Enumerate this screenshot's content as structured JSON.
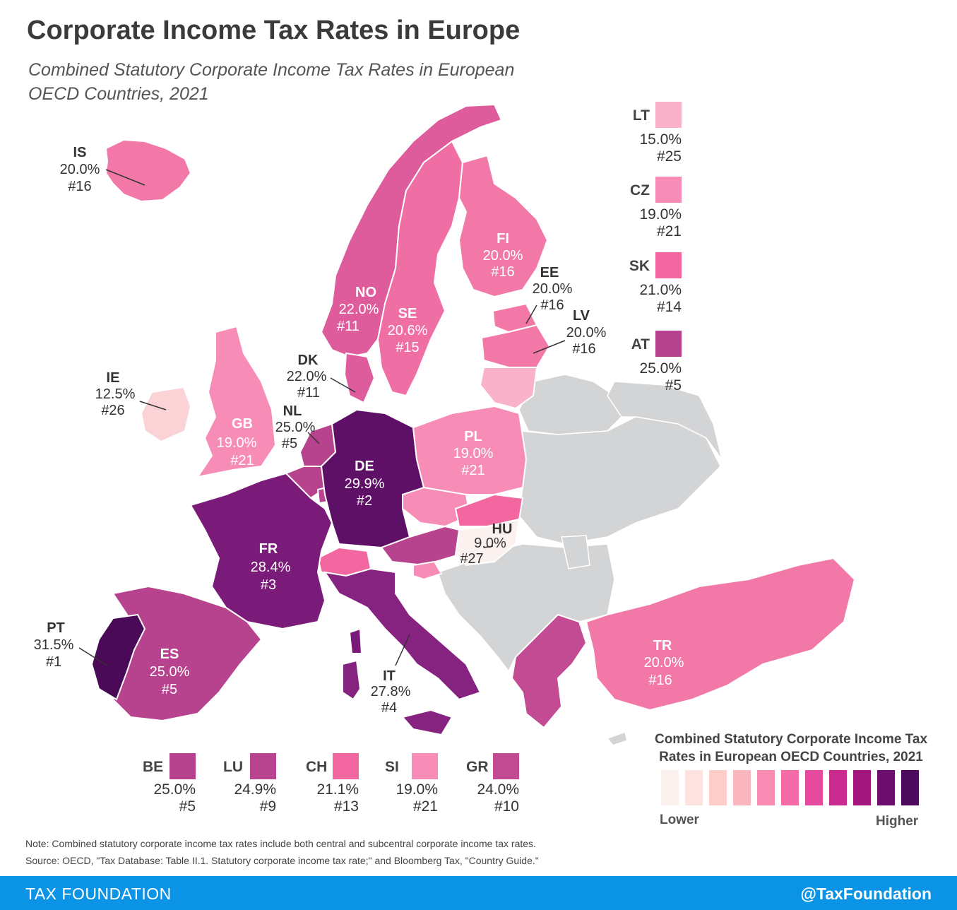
{
  "title": "Corporate Income Tax Rates in Europe",
  "subtitle": "Combined Statutory Corporate Income Tax Rates in European OECD Countries, 2021",
  "colors": {
    "non_oecd": "#d3d4d6",
    "border": "#ffffff",
    "scale": [
      "#fbf2f0",
      "#fde3df",
      "#fccdc9",
      "#fab6bf",
      "#f88bb2",
      "#f66aa8",
      "#e54a9f",
      "#c82a8e",
      "#a1157d",
      "#6c0e6e",
      "#4c0a5c"
    ]
  },
  "countries": [
    {
      "code": "IS",
      "rate": "20.0%",
      "rank": "#16",
      "fill": "#f279a7"
    },
    {
      "code": "FI",
      "rate": "20.0%",
      "rank": "#16",
      "fill": "#f279a7"
    },
    {
      "code": "EE",
      "rate": "20.0%",
      "rank": "#16",
      "fill": "#f279a7"
    },
    {
      "code": "LV",
      "rate": "20.0%",
      "rank": "#16",
      "fill": "#f279a7"
    },
    {
      "code": "NO",
      "rate": "22.0%",
      "rank": "#11",
      "fill": "#df5c9c"
    },
    {
      "code": "SE",
      "rate": "20.6%",
      "rank": "#15",
      "fill": "#ef6fa5"
    },
    {
      "code": "DK",
      "rate": "22.0%",
      "rank": "#11",
      "fill": "#df5c9c"
    },
    {
      "code": "IE",
      "rate": "12.5%",
      "rank": "#26",
      "fill": "#fbd3d6"
    },
    {
      "code": "GB",
      "rate": "19.0%",
      "rank": "#21",
      "fill": "#f78db7"
    },
    {
      "code": "NL",
      "rate": "25.0%",
      "rank": "#5",
      "fill": "#b7428e"
    },
    {
      "code": "DE",
      "rate": "29.9%",
      "rank": "#2",
      "fill": "#5e0f66"
    },
    {
      "code": "PL",
      "rate": "19.0%",
      "rank": "#21",
      "fill": "#f78db7"
    },
    {
      "code": "HU",
      "rate": "9.0%",
      "rank": "#27",
      "fill": "#fbf1ee"
    },
    {
      "code": "FR",
      "rate": "28.4%",
      "rank": "#3",
      "fill": "#7b1b79"
    },
    {
      "code": "PT",
      "rate": "31.5%",
      "rank": "#1",
      "fill": "#4a0a58"
    },
    {
      "code": "ES",
      "rate": "25.0%",
      "rank": "#5",
      "fill": "#b7428e"
    },
    {
      "code": "IT",
      "rate": "27.8%",
      "rank": "#4",
      "fill": "#862380"
    },
    {
      "code": "TR",
      "rate": "20.0%",
      "rank": "#16",
      "fill": "#f279a7"
    }
  ],
  "side_legend": [
    {
      "code": "LT",
      "rate": "15.0%",
      "rank": "#25",
      "fill": "#f9b2c9"
    },
    {
      "code": "CZ",
      "rate": "19.0%",
      "rank": "#21",
      "fill": "#f78db7"
    },
    {
      "code": "SK",
      "rate": "21.0%",
      "rank": "#14",
      "fill": "#f2679f"
    },
    {
      "code": "AT",
      "rate": "25.0%",
      "rank": "#5",
      "fill": "#b7428e"
    }
  ],
  "bottom_legend": [
    {
      "code": "BE",
      "rate": "25.0%",
      "rank": "#5",
      "fill": "#b7428e"
    },
    {
      "code": "LU",
      "rate": "24.9%",
      "rank": "#9",
      "fill": "#b8438f"
    },
    {
      "code": "CH",
      "rate": "21.1%",
      "rank": "#13",
      "fill": "#f2679f"
    },
    {
      "code": "SI",
      "rate": "19.0%",
      "rank": "#21",
      "fill": "#f78db7"
    },
    {
      "code": "GR",
      "rate": "24.0%",
      "rank": "#10",
      "fill": "#c24b93"
    }
  ],
  "legend": {
    "title": "Combined Statutory Corporate Income Tax Rates in European OECD Countries, 2021",
    "lower": "Lower",
    "higher": "Higher"
  },
  "note": "Note: Combined statutory corporate income tax rates include both central and subcentral corporate income tax rates.",
  "source": "Source: OECD, \"Tax Database: Table II.1. Statutory corporate income tax rate;\" and Bloomberg Tax, \"Country Guide.\"",
  "footer": {
    "left": "TAX FOUNDATION",
    "right": "@TaxFoundation"
  }
}
